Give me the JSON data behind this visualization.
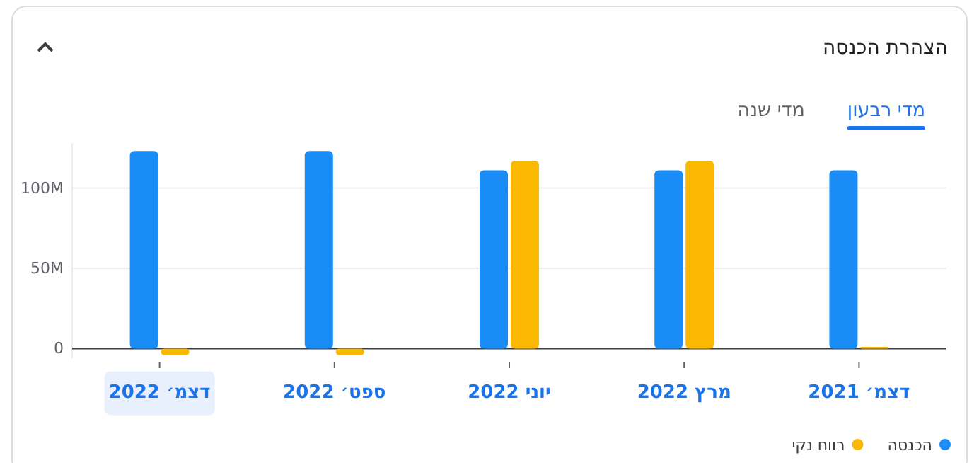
{
  "chart_data": {
    "type": "bar",
    "title": "הצהרת הכנסה",
    "annotations": [
      "מדי רבעון",
      "מדי שנה"
    ],
    "categories": [
      "דצמ׳ 2022",
      "ספט׳ 2022",
      "יוני 2022",
      "מרץ 2022",
      "דצמ׳ 2021"
    ],
    "series": [
      {
        "name": "הכנסה",
        "color": "#1a8cf5",
        "values": [
          123,
          123,
          111,
          111,
          111
        ]
      },
      {
        "name": "רווח נקי",
        "color": "#fbb800",
        "values": [
          -4,
          -4,
          117,
          117,
          1
        ]
      }
    ],
    "ylim": [
      -6,
      128
    ],
    "yticks": [
      0,
      {
        "value": 50,
        "label": "50M"
      },
      {
        "value": 100,
        "label": "100M"
      }
    ],
    "grid": "y",
    "legend": "bottom right"
  }
}
